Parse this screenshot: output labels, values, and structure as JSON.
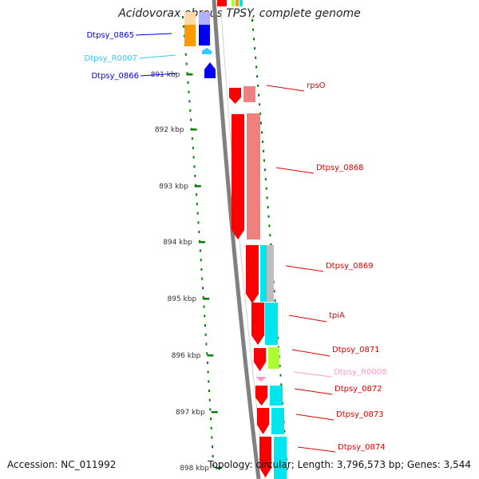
{
  "title": "Acidovorax ebreus TPSY, complete genome",
  "footer": {
    "accession": "Accession: NC_011992",
    "summary": "Topology: circular; Length: 3,796,573 bp; Genes: 3,544"
  },
  "colors": {
    "cds_red": "#ff0000",
    "cds_pink": "#f08080",
    "cds_cyan": "#00e5ee",
    "cds_yellowgreen": "#adff2f",
    "blue": "#0000ee",
    "orange": "#ff9a00",
    "rna_light": "#33ccff",
    "rna_pink": "#ff99cc",
    "tick_green": "#008000",
    "backbone_gray": "#808080"
  },
  "tick_labels": [
    "891 kbp",
    "892 kbp",
    "893 kbp",
    "894 kbp",
    "895 kbp",
    "896 kbp",
    "897 kbp",
    "898 kbp"
  ],
  "gene_labels": [
    {
      "text": "Dtpsy_0865",
      "color": "#0000ee",
      "side": "left"
    },
    {
      "text": "Dtpsy_R0007",
      "color": "#33ccee",
      "side": "left"
    },
    {
      "text": "Dtpsy_0866",
      "color": "#0000ee",
      "side": "left"
    },
    {
      "text": "rpsO",
      "color": "#dd0000",
      "side": "right"
    },
    {
      "text": "Dtpsy_0868",
      "color": "#dd0000",
      "side": "right"
    },
    {
      "text": "Dtpsy_0869",
      "color": "#dd0000",
      "side": "right"
    },
    {
      "text": "tpiA",
      "color": "#dd0000",
      "side": "right"
    },
    {
      "text": "Dtpsy_0871",
      "color": "#dd0000",
      "side": "right"
    },
    {
      "text": "Dtpsy_R0008",
      "color": "#ff99cc",
      "side": "right"
    },
    {
      "text": "Dtpsy_0872",
      "color": "#dd0000",
      "side": "right"
    },
    {
      "text": "Dtpsy_0873",
      "color": "#dd0000",
      "side": "right"
    },
    {
      "text": "Dtpsy_0874",
      "color": "#dd0000",
      "side": "right"
    }
  ]
}
